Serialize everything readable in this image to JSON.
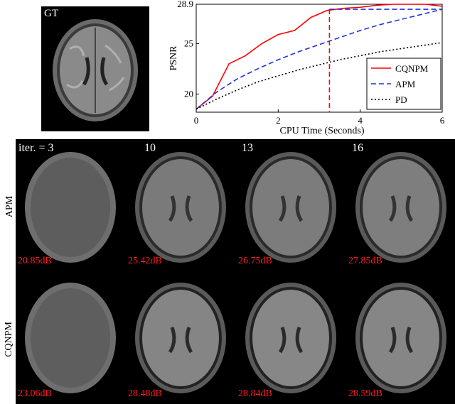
{
  "gt_label": "GT",
  "chart_data": {
    "type": "line",
    "xlabel": "CPU Time (Seconds)",
    "ylabel": "PSNR",
    "xlim": [
      0,
      6
    ],
    "ylim": [
      18.2,
      28.9
    ],
    "xticks": [
      "0",
      "2",
      "4",
      "6"
    ],
    "yticks": [
      "20",
      "25",
      "28.9"
    ],
    "ytick_values": [
      20,
      25,
      28.9
    ],
    "xtick_values": [
      0,
      2,
      4,
      6
    ],
    "legend_position": "bottom-right",
    "series": [
      {
        "name": "CQNPM",
        "color": "#ff0000",
        "dash": "solid",
        "x": [
          0,
          0.4,
          0.8,
          1.2,
          1.6,
          2.0,
          2.4,
          2.8,
          3.2,
          3.6,
          4.0,
          4.4,
          4.8,
          5.2,
          5.6,
          6.0
        ],
        "y": [
          18.5,
          19.8,
          23.0,
          23.8,
          25.0,
          25.9,
          26.3,
          27.6,
          28.3,
          28.5,
          28.6,
          28.8,
          28.9,
          28.9,
          28.9,
          28.7
        ]
      },
      {
        "name": "APM",
        "color": "#2233dd",
        "dash": "dashed",
        "x": [
          0,
          0.5,
          1.0,
          1.5,
          2.0,
          2.5,
          3.0,
          3.5,
          4.0,
          4.5,
          5.0,
          5.5,
          6.0
        ],
        "y": [
          18.5,
          20.2,
          21.5,
          22.5,
          23.4,
          24.2,
          24.9,
          25.6,
          26.3,
          26.9,
          27.4,
          27.9,
          28.4
        ]
      },
      {
        "name": "PD",
        "color": "#000000",
        "dash": "dotted",
        "x": [
          0,
          0.5,
          1.0,
          1.5,
          2.0,
          2.5,
          3.0,
          3.5,
          4.0,
          4.5,
          5.0,
          5.5,
          6.0
        ],
        "y": [
          18.5,
          19.5,
          20.4,
          21.2,
          21.8,
          22.4,
          22.9,
          23.4,
          23.8,
          24.2,
          24.5,
          24.8,
          25.1
        ]
      }
    ],
    "annotations": [
      {
        "type": "vline",
        "x": 3.25,
        "y": 28.4,
        "color": "#ff0000",
        "dash": "dashed"
      },
      {
        "type": "hline",
        "x_from": 3.25,
        "x_to": 6.0,
        "y": 28.4,
        "color": "#2233dd",
        "dash": "dashed"
      }
    ]
  },
  "grid": {
    "iterations": [
      "iter. = 3",
      "10",
      "13",
      "16"
    ],
    "rows": [
      {
        "label": "APM",
        "psnr": [
          "20.85dB",
          "25.42dB",
          "26.75dB",
          "27.85dB"
        ]
      },
      {
        "label": "CQNPM",
        "psnr": [
          "23.06dB",
          "28.48dB",
          "28.84dB",
          "28.59dB"
        ]
      }
    ]
  }
}
